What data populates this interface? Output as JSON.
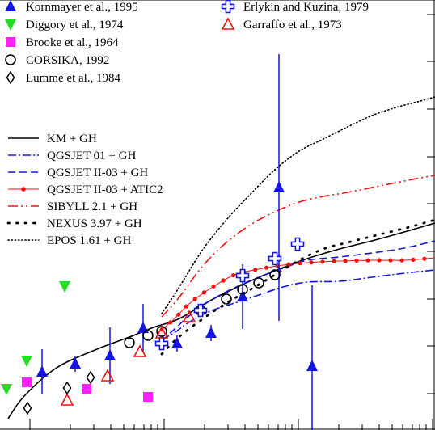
{
  "chart_data": {
    "type": "line",
    "title": "",
    "xlabel": "",
    "ylabel": "",
    "x_scale": "log",
    "marker_legend": [
      {
        "name": "Kornmayer et al., 1995",
        "marker": "triangle-up",
        "color": "#1515e0"
      },
      {
        "name": "Diggory et al., 1974",
        "marker": "triangle-down",
        "color": "#22dd22"
      },
      {
        "name": "Brooke et al., 1964",
        "marker": "square",
        "color": "#ff20ff"
      },
      {
        "name": "CORSIKA, 1992",
        "marker": "circle-open",
        "color": "#000000"
      },
      {
        "name": "Lumme et al., 1984",
        "marker": "diamond-open",
        "color": "#000000"
      },
      {
        "name": "Erlykin and Kuzina, 1979",
        "marker": "cross-open",
        "color": "#1515e0"
      },
      {
        "name": "Garraffo et al., 1973",
        "marker": "triangle-open",
        "color": "#ee1111"
      }
    ],
    "series": [
      {
        "name": "KM + GH",
        "style": "solid",
        "color": "#000000",
        "points": [
          [
            10,
            518
          ],
          [
            30,
            490
          ],
          [
            70,
            455
          ],
          [
            120,
            432
          ],
          [
            160,
            417
          ],
          [
            190,
            405
          ],
          [
            220,
            395
          ],
          [
            260,
            372
          ],
          [
            300,
            352
          ],
          [
            340,
            335
          ],
          [
            380,
            320
          ],
          [
            420,
            308
          ],
          [
            460,
            298
          ],
          [
            500,
            287
          ],
          [
            538,
            276
          ]
        ]
      },
      {
        "name": "QGSJET 01 + GH",
        "style": "dashdot",
        "color": "#1515e0",
        "points": [
          [
            200,
            420
          ],
          [
            215,
            412
          ],
          [
            235,
            398
          ],
          [
            260,
            385
          ],
          [
            290,
            375
          ],
          [
            320,
            365
          ],
          [
            350,
            355
          ],
          [
            380,
            349
          ],
          [
            420,
            348
          ],
          [
            460,
            343
          ],
          [
            500,
            338
          ],
          [
            538,
            334
          ]
        ]
      },
      {
        "name": "QGSJET II-03 + GH",
        "style": "dashed",
        "color": "#1515e0",
        "points": [
          [
            200,
            422
          ],
          [
            215,
            408
          ],
          [
            235,
            390
          ],
          [
            260,
            372
          ],
          [
            290,
            356
          ],
          [
            320,
            343
          ],
          [
            350,
            332
          ],
          [
            380,
            322
          ],
          [
            420,
            318
          ],
          [
            460,
            313
          ],
          [
            500,
            307
          ],
          [
            538,
            298
          ]
        ]
      },
      {
        "name": "QGSJET II-03 + ATIC2",
        "style": "solid-dots",
        "color": "#ee1111",
        "points": [
          [
            200,
            408
          ],
          [
            215,
            395
          ],
          [
            235,
            375
          ],
          [
            260,
            357
          ],
          [
            290,
            340
          ],
          [
            320,
            333
          ],
          [
            350,
            328
          ],
          [
            380,
            325
          ],
          [
            420,
            323
          ],
          [
            460,
            322
          ],
          [
            500,
            322
          ],
          [
            538,
            319
          ]
        ]
      },
      {
        "name": "SIBYLL 2.1 + GH",
        "style": "dashdotdot",
        "color": "#ee1111",
        "points": [
          [
            200,
            392
          ],
          [
            220,
            370
          ],
          [
            250,
            330
          ],
          [
            280,
            300
          ],
          [
            310,
            278
          ],
          [
            340,
            262
          ],
          [
            370,
            250
          ],
          [
            400,
            243
          ],
          [
            430,
            238
          ],
          [
            470,
            230
          ],
          [
            510,
            222
          ],
          [
            538,
            217
          ]
        ]
      },
      {
        "name": "NEXUS 3.97 + GH",
        "style": "dotted-sparse",
        "color": "#000000",
        "points": [
          [
            200,
            438
          ],
          [
            220,
            418
          ],
          [
            250,
            395
          ],
          [
            280,
            375
          ],
          [
            310,
            358
          ],
          [
            340,
            340
          ],
          [
            370,
            322
          ],
          [
            400,
            308
          ],
          [
            430,
            300
          ],
          [
            470,
            290
          ],
          [
            510,
            280
          ],
          [
            538,
            272
          ]
        ]
      },
      {
        "name": "EPOS 1.61 + GH",
        "style": "dotted",
        "color": "#000000",
        "points": [
          [
            200,
            388
          ],
          [
            220,
            358
          ],
          [
            250,
            310
          ],
          [
            280,
            272
          ],
          [
            310,
            240
          ],
          [
            340,
            210
          ],
          [
            370,
            187
          ],
          [
            400,
            172
          ],
          [
            430,
            157
          ],
          [
            460,
            143
          ],
          [
            490,
            133
          ],
          [
            520,
            125
          ],
          [
            538,
            120
          ]
        ]
      }
    ],
    "markers": [
      {
        "set": "Kornmayer et al., 1995",
        "points": [
          [
            52,
            460,
            28
          ],
          [
            93,
            450,
            10
          ],
          [
            136,
            440,
            35
          ],
          [
            177,
            406,
            30
          ],
          [
            219,
            425,
            10
          ],
          [
            261,
            412,
            10
          ],
          [
            300,
            367,
            40
          ],
          [
            345,
            232,
            165
          ],
          [
            386,
            453,
            100
          ]
        ]
      },
      {
        "set": "Diggory et al., 1974",
        "points": [
          [
            8,
            481,
            0
          ],
          [
            33,
            446,
            0
          ],
          [
            80,
            354,
            0
          ]
        ]
      },
      {
        "set": "Brooke et al., 1964",
        "points": [
          [
            33,
            473,
            0
          ],
          [
            107,
            481,
            0
          ],
          [
            183,
            491,
            0
          ]
        ]
      },
      {
        "set": "CORSIKA, 1992",
        "points": [
          [
            160,
            424,
            0
          ],
          [
            183,
            415,
            0
          ],
          [
            200,
            410,
            0
          ],
          [
            248,
            384,
            0
          ],
          [
            280,
            370,
            0
          ],
          [
            300,
            358,
            0
          ],
          [
            320,
            350,
            0
          ],
          [
            340,
            340,
            0
          ]
        ]
      },
      {
        "set": "Lumme et al., 1984",
        "points": [
          [
            34,
            505,
            0
          ],
          [
            83,
            480,
            0
          ],
          [
            112,
            467,
            0
          ]
        ]
      },
      {
        "set": "Erlykin and Kuzina, 1979",
        "points": [
          [
            200,
            425,
            0
          ],
          [
            248,
            384,
            0
          ],
          [
            300,
            341,
            0
          ],
          [
            340,
            320,
            0
          ],
          [
            368,
            302,
            0
          ]
        ]
      },
      {
        "set": "Garraffo et al., 1973",
        "points": [
          [
            83,
            495,
            0
          ],
          [
            133,
            465,
            0
          ],
          [
            173,
            435,
            0
          ],
          [
            200,
            412,
            0
          ],
          [
            234,
            392,
            0
          ]
        ]
      }
    ]
  }
}
